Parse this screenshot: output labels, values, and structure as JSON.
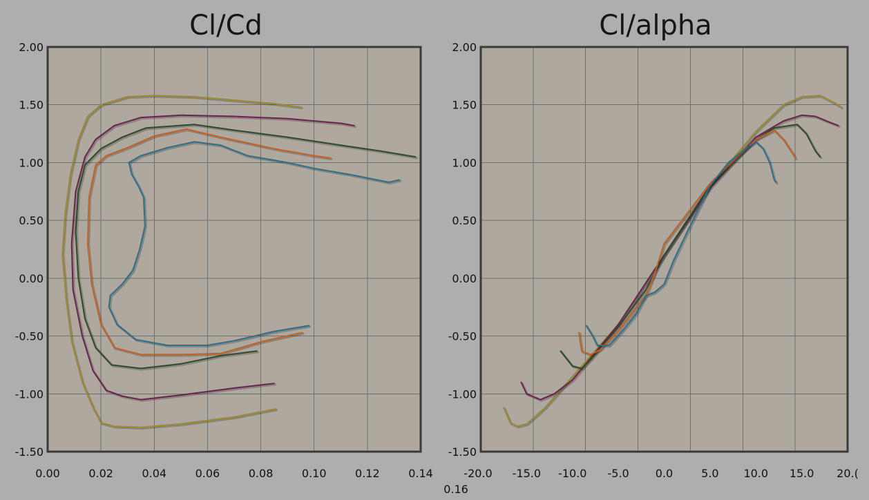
{
  "chart_data": [
    {
      "type": "line",
      "title": "Cl/Cd",
      "xlabel": "",
      "ylabel": "",
      "xlim": [
        0.0,
        0.14
      ],
      "ylim": [
        -1.5,
        2.0
      ],
      "x_ticks": [
        "0.00",
        "0.02",
        "0.04",
        "0.06",
        "0.08",
        "0.10",
        "0.12",
        "0.14"
      ],
      "y_ticks": [
        "2.00",
        "1.50",
        "1.00",
        "0.50",
        "0.00",
        "-0.50",
        "-1.00",
        "-1.50"
      ],
      "grid": true,
      "series": [
        {
          "color": "#9c8a2e",
          "points": [
            [
              0.0855,
              -1.13
            ],
            [
              0.07,
              -1.2
            ],
            [
              0.05,
              -1.26
            ],
            [
              0.035,
              -1.29
            ],
            [
              0.025,
              -1.28
            ],
            [
              0.02,
              -1.25
            ],
            [
              0.017,
              -1.12
            ],
            [
              0.013,
              -0.9
            ],
            [
              0.009,
              -0.55
            ],
            [
              0.007,
              -0.2
            ],
            [
              0.0055,
              0.2
            ],
            [
              0.0065,
              0.55
            ],
            [
              0.0085,
              0.9
            ],
            [
              0.0115,
              1.2
            ],
            [
              0.015,
              1.4
            ],
            [
              0.02,
              1.5
            ],
            [
              0.03,
              1.57
            ],
            [
              0.04,
              1.58
            ],
            [
              0.055,
              1.57
            ],
            [
              0.07,
              1.54
            ],
            [
              0.085,
              1.51
            ],
            [
              0.095,
              1.48
            ]
          ]
        },
        {
          "color": "#6b2250",
          "points": [
            [
              0.085,
              -0.91
            ],
            [
              0.07,
              -0.95
            ],
            [
              0.05,
              -1.01
            ],
            [
              0.035,
              -1.05
            ],
            [
              0.028,
              -1.02
            ],
            [
              0.022,
              -0.97
            ],
            [
              0.017,
              -0.8
            ],
            [
              0.013,
              -0.5
            ],
            [
              0.0095,
              -0.1
            ],
            [
              0.009,
              0.3
            ],
            [
              0.0105,
              0.75
            ],
            [
              0.014,
              1.05
            ],
            [
              0.018,
              1.2
            ],
            [
              0.025,
              1.32
            ],
            [
              0.035,
              1.39
            ],
            [
              0.05,
              1.41
            ],
            [
              0.07,
              1.4
            ],
            [
              0.09,
              1.38
            ],
            [
              0.11,
              1.34
            ],
            [
              0.115,
              1.32
            ]
          ]
        },
        {
          "color": "#2e4a28",
          "points": [
            [
              0.0785,
              -0.63
            ],
            [
              0.065,
              -0.67
            ],
            [
              0.05,
              -0.74
            ],
            [
              0.035,
              -0.78
            ],
            [
              0.024,
              -0.75
            ],
            [
              0.018,
              -0.6
            ],
            [
              0.014,
              -0.35
            ],
            [
              0.0115,
              0.0
            ],
            [
              0.0105,
              0.4
            ],
            [
              0.0115,
              0.75
            ],
            [
              0.014,
              0.98
            ],
            [
              0.02,
              1.12
            ],
            [
              0.028,
              1.22
            ],
            [
              0.037,
              1.3
            ],
            [
              0.055,
              1.33
            ],
            [
              0.07,
              1.28
            ],
            [
              0.09,
              1.22
            ],
            [
              0.11,
              1.15
            ],
            [
              0.125,
              1.1
            ],
            [
              0.138,
              1.05
            ]
          ]
        },
        {
          "color": "#c46224",
          "points": [
            [
              0.0955,
              -0.47
            ],
            [
              0.08,
              -0.55
            ],
            [
              0.065,
              -0.65
            ],
            [
              0.05,
              -0.66
            ],
            [
              0.035,
              -0.66
            ],
            [
              0.025,
              -0.6
            ],
            [
              0.02,
              -0.4
            ],
            [
              0.0165,
              -0.05
            ],
            [
              0.015,
              0.3
            ],
            [
              0.0155,
              0.7
            ],
            [
              0.018,
              0.98
            ],
            [
              0.022,
              1.06
            ],
            [
              0.03,
              1.13
            ],
            [
              0.04,
              1.23
            ],
            [
              0.052,
              1.29
            ],
            [
              0.065,
              1.22
            ],
            [
              0.085,
              1.12
            ],
            [
              0.1,
              1.06
            ],
            [
              0.106,
              1.04
            ]
          ]
        },
        {
          "color": "#2e6f8a",
          "points": [
            [
              0.098,
              -0.41
            ],
            [
              0.085,
              -0.46
            ],
            [
              0.07,
              -0.54
            ],
            [
              0.06,
              -0.58
            ],
            [
              0.045,
              -0.58
            ],
            [
              0.033,
              -0.53
            ],
            [
              0.026,
              -0.4
            ],
            [
              0.023,
              -0.25
            ],
            [
              0.0235,
              -0.15
            ],
            [
              0.028,
              -0.05
            ],
            [
              0.032,
              0.07
            ],
            [
              0.0345,
              0.25
            ],
            [
              0.0365,
              0.45
            ],
            [
              0.036,
              0.7
            ],
            [
              0.034,
              0.8
            ],
            [
              0.0315,
              0.9
            ],
            [
              0.0305,
              1.0
            ],
            [
              0.035,
              1.06
            ],
            [
              0.045,
              1.13
            ],
            [
              0.055,
              1.18
            ],
            [
              0.065,
              1.15
            ],
            [
              0.075,
              1.06
            ],
            [
              0.09,
              1.0
            ],
            [
              0.1,
              0.95
            ],
            [
              0.115,
              0.89
            ],
            [
              0.128,
              0.83
            ],
            [
              0.132,
              0.85
            ]
          ]
        }
      ]
    },
    {
      "type": "line",
      "title": "Cl/alpha",
      "xlabel": "",
      "ylabel": "",
      "xlim": [
        -20.0,
        20.0
      ],
      "ylim": [
        -1.5,
        2.0
      ],
      "x_ticks": [
        "-15.0",
        "-10.0",
        "-5.0",
        "0.0",
        "5.0",
        "10.0",
        "15.0",
        "20.("
      ],
      "x_tick_overlap": [
        "-20.0",
        "0.16"
      ],
      "y_ticks": [
        "2.00",
        "1.50",
        "1.00",
        "0.50",
        "0.00",
        "-0.50",
        "-1.00",
        "-1.50"
      ],
      "grid": true,
      "series": [
        {
          "color": "#9c8a2e",
          "points": [
            [
              -17.5,
              -1.12
            ],
            [
              -16.8,
              -1.25
            ],
            [
              -16.0,
              -1.28
            ],
            [
              -15.0,
              -1.26
            ],
            [
              -13.0,
              -1.12
            ],
            [
              -10.0,
              -0.85
            ],
            [
              -5.0,
              -0.4
            ],
            [
              0.0,
              0.2
            ],
            [
              5.0,
              0.8
            ],
            [
              10.0,
              1.27
            ],
            [
              13.0,
              1.5
            ],
            [
              15.0,
              1.57
            ],
            [
              17.0,
              1.58
            ],
            [
              18.5,
              1.52
            ],
            [
              19.3,
              1.48
            ]
          ]
        },
        {
          "color": "#6b2250",
          "points": [
            [
              -15.6,
              -0.9
            ],
            [
              -15.0,
              -1.0
            ],
            [
              -13.5,
              -1.05
            ],
            [
              -12.0,
              -1.0
            ],
            [
              -10.0,
              -0.88
            ],
            [
              -5.0,
              -0.4
            ],
            [
              0.0,
              0.2
            ],
            [
              5.0,
              0.78
            ],
            [
              10.0,
              1.22
            ],
            [
              13.0,
              1.36
            ],
            [
              15.0,
              1.41
            ],
            [
              16.5,
              1.4
            ],
            [
              18.0,
              1.35
            ],
            [
              19.0,
              1.32
            ]
          ]
        },
        {
          "color": "#2e4a28",
          "points": [
            [
              -11.3,
              -0.63
            ],
            [
              -10.0,
              -0.76
            ],
            [
              -9.0,
              -0.78
            ],
            [
              -8.0,
              -0.7
            ],
            [
              -5.0,
              -0.42
            ],
            [
              -2.0,
              -0.1
            ],
            [
              0.0,
              0.2
            ],
            [
              5.0,
              0.8
            ],
            [
              10.0,
              1.2
            ],
            [
              12.0,
              1.3
            ],
            [
              14.5,
              1.33
            ],
            [
              15.5,
              1.25
            ],
            [
              16.5,
              1.1
            ],
            [
              17.0,
              1.05
            ]
          ]
        },
        {
          "color": "#c46224",
          "points": [
            [
              -9.3,
              -0.47
            ],
            [
              -9.0,
              -0.63
            ],
            [
              -8.0,
              -0.66
            ],
            [
              -7.0,
              -0.62
            ],
            [
              -5.0,
              -0.45
            ],
            [
              -3.0,
              -0.25
            ],
            [
              -2.0,
              -0.15
            ],
            [
              -1.0,
              0.05
            ],
            [
              0.0,
              0.3
            ],
            [
              5.0,
              0.82
            ],
            [
              10.0,
              1.2
            ],
            [
              12.0,
              1.28
            ],
            [
              13.0,
              1.2
            ],
            [
              14.0,
              1.08
            ],
            [
              14.3,
              1.04
            ]
          ]
        },
        {
          "color": "#2e6f8a",
          "points": [
            [
              -8.5,
              -0.41
            ],
            [
              -7.8,
              -0.5
            ],
            [
              -7.3,
              -0.58
            ],
            [
              -6.0,
              -0.58
            ],
            [
              -4.5,
              -0.45
            ],
            [
              -3.0,
              -0.3
            ],
            [
              -2.0,
              -0.15
            ],
            [
              -1.0,
              -0.12
            ],
            [
              0.0,
              -0.05
            ],
            [
              1.0,
              0.15
            ],
            [
              2.5,
              0.4
            ],
            [
              5.0,
              0.8
            ],
            [
              7.0,
              1.0
            ],
            [
              9.0,
              1.13
            ],
            [
              10.0,
              1.18
            ],
            [
              10.8,
              1.12
            ],
            [
              11.5,
              1.0
            ],
            [
              12.0,
              0.85
            ],
            [
              12.2,
              0.83
            ]
          ]
        }
      ]
    }
  ]
}
